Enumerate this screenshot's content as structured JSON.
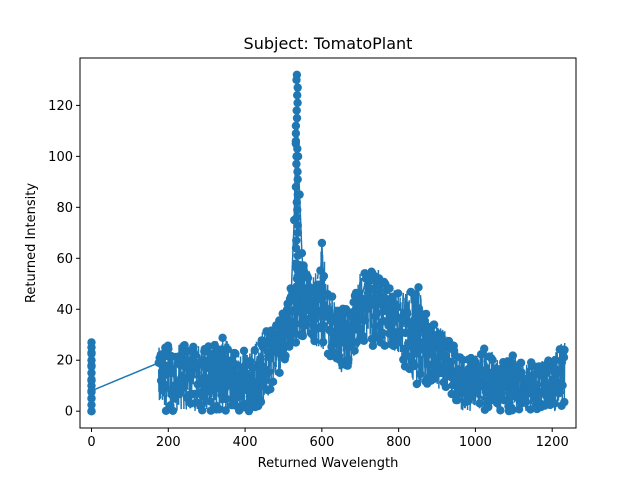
{
  "chart_data": {
    "type": "line",
    "title": "Subject: TomatoPlant",
    "xlabel": "Returned Wavelength",
    "ylabel": "Returned Intensity",
    "xlim": [
      -30,
      1262
    ],
    "ylim": [
      -6.6,
      138.6
    ],
    "xticks": [
      0,
      200,
      400,
      600,
      800,
      1000,
      1200
    ],
    "yticks": [
      0,
      20,
      40,
      60,
      80,
      100,
      120
    ],
    "grid": false,
    "legend": "none",
    "series": [
      {
        "color": "#1f77b4",
        "marker": "circle",
        "connected": true,
        "x": [
          0,
          0,
          0,
          0,
          0,
          0,
          0,
          175,
          185,
          200,
          230,
          260,
          290,
          320,
          350,
          380,
          400,
          420,
          440,
          460,
          470,
          480,
          490,
          500,
          510,
          520,
          528,
          532,
          535,
          538,
          542,
          548,
          555,
          565,
          575,
          585,
          595,
          600,
          605,
          615,
          630,
          650,
          665,
          680,
          700,
          715,
          730,
          750,
          770,
          790,
          810,
          830,
          850,
          870,
          890,
          910,
          930,
          950,
          970,
          1000,
          1030,
          1060,
          1100,
          1140,
          1180,
          1210,
          1232
        ],
        "y": [
          23,
          27,
          12,
          5,
          0,
          18,
          8,
          19,
          14,
          15,
          12,
          14,
          13,
          12,
          11,
          13,
          15,
          17,
          20,
          23,
          26,
          30,
          33,
          36,
          40,
          45,
          75,
          105,
          132,
          100,
          85,
          62,
          45,
          42,
          48,
          46,
          44,
          66,
          45,
          40,
          36,
          32,
          28,
          33,
          42,
          52,
          48,
          42,
          40,
          38,
          36,
          34,
          32,
          30,
          27,
          24,
          18,
          12,
          8,
          10,
          9,
          8,
          9,
          8,
          9,
          8,
          24
        ]
      }
    ],
    "scatter_envelope": [
      {
        "x": 175,
        "lo": 0,
        "hi": 25
      },
      {
        "x": 200,
        "lo": 0,
        "hi": 27
      },
      {
        "x": 250,
        "lo": 0,
        "hi": 26
      },
      {
        "x": 300,
        "lo": 0,
        "hi": 26
      },
      {
        "x": 340,
        "lo": 0,
        "hi": 29
      },
      {
        "x": 380,
        "lo": 0,
        "hi": 25
      },
      {
        "x": 420,
        "lo": 0,
        "hi": 27
      },
      {
        "x": 450,
        "lo": 2,
        "hi": 32
      },
      {
        "x": 480,
        "lo": 12,
        "hi": 35
      },
      {
        "x": 500,
        "lo": 18,
        "hi": 40
      },
      {
        "x": 520,
        "lo": 25,
        "hi": 50
      },
      {
        "x": 540,
        "lo": 28,
        "hi": 60
      },
      {
        "x": 560,
        "lo": 30,
        "hi": 58
      },
      {
        "x": 580,
        "lo": 26,
        "hi": 52
      },
      {
        "x": 600,
        "lo": 24,
        "hi": 64
      },
      {
        "x": 620,
        "lo": 22,
        "hi": 48
      },
      {
        "x": 650,
        "lo": 15,
        "hi": 40
      },
      {
        "x": 680,
        "lo": 18,
        "hi": 42
      },
      {
        "x": 700,
        "lo": 28,
        "hi": 55
      },
      {
        "x": 730,
        "lo": 25,
        "hi": 58
      },
      {
        "x": 760,
        "lo": 26,
        "hi": 54
      },
      {
        "x": 800,
        "lo": 22,
        "hi": 46
      },
      {
        "x": 850,
        "lo": 8,
        "hi": 50
      },
      {
        "x": 880,
        "lo": 10,
        "hi": 35
      },
      {
        "x": 920,
        "lo": 8,
        "hi": 32
      },
      {
        "x": 960,
        "lo": 0,
        "hi": 22
      },
      {
        "x": 1000,
        "lo": 0,
        "hi": 22
      },
      {
        "x": 1030,
        "lo": 0,
        "hi": 26
      },
      {
        "x": 1060,
        "lo": 0,
        "hi": 20
      },
      {
        "x": 1100,
        "lo": 0,
        "hi": 22
      },
      {
        "x": 1150,
        "lo": 0,
        "hi": 20
      },
      {
        "x": 1200,
        "lo": 0,
        "hi": 21
      },
      {
        "x": 1232,
        "lo": 0,
        "hi": 29
      }
    ]
  }
}
